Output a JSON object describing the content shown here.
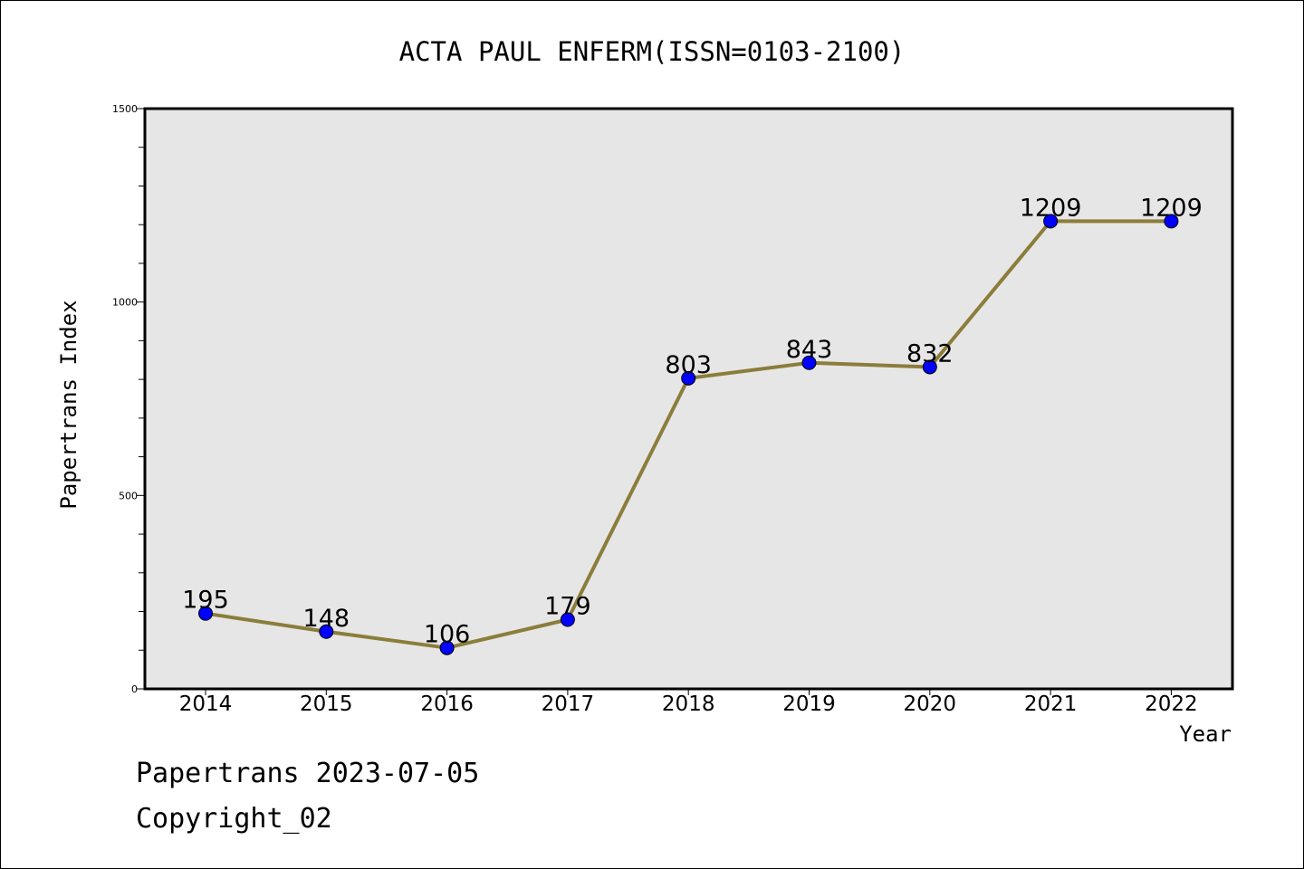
{
  "chart_data": {
    "type": "line",
    "title": "ACTA PAUL ENFERM(ISSN=0103-2100)",
    "xlabel": "Year",
    "ylabel": "Papertrans Index",
    "categories": [
      "2014",
      "2015",
      "2016",
      "2017",
      "2018",
      "2019",
      "2020",
      "2021",
      "2022"
    ],
    "series": [
      {
        "values": [
          195,
          148,
          106,
          179,
          803,
          843,
          832,
          1209,
          1209
        ]
      }
    ],
    "ylim": [
      0,
      1500
    ],
    "yticks": [
      0,
      500,
      1000,
      1500
    ],
    "grid": false,
    "line_color": "#8B7D3A",
    "marker_color": "#0000FF",
    "plot_background": "#E6E6E6"
  },
  "footer": {
    "line1": "Papertrans 2023-07-05",
    "line2": "Copyright_02"
  }
}
